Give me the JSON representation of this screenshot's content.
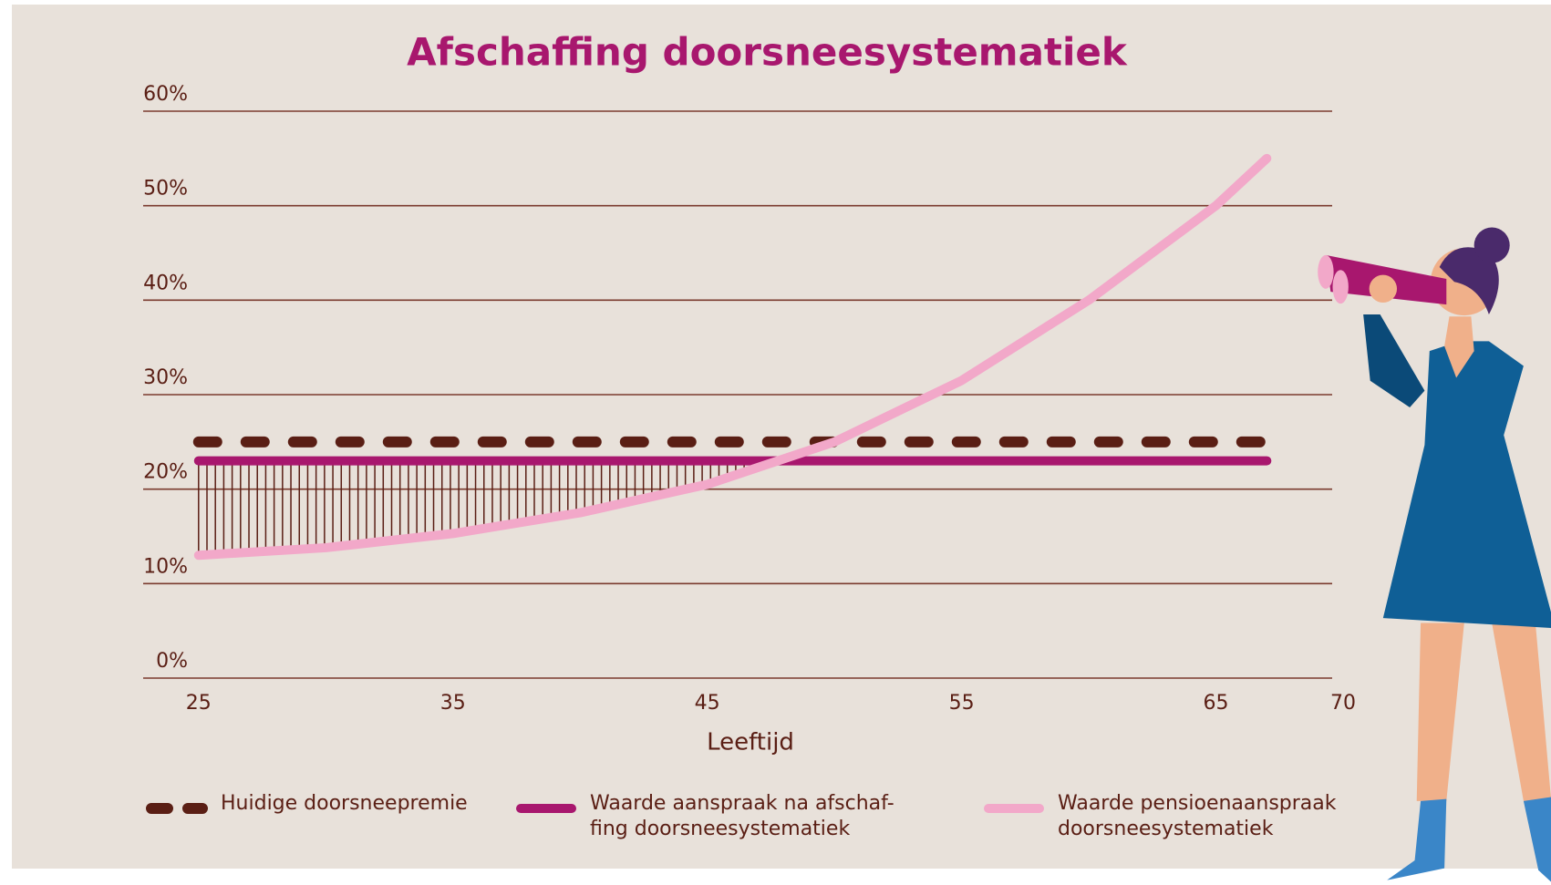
{
  "chart_data": {
    "type": "line",
    "title": "Afschaffing doorsneesystematiek",
    "xlabel": "Leeftijd",
    "xlim": [
      23,
      70
    ],
    "xticks": [
      25,
      35,
      45,
      55,
      65,
      70
    ],
    "ylim": [
      0,
      60
    ],
    "yticks": [
      {
        "value": 0,
        "label": "0%"
      },
      {
        "value": 10,
        "label": "10%"
      },
      {
        "value": 20,
        "label": "20%"
      },
      {
        "value": 30,
        "label": "30%"
      },
      {
        "value": 40,
        "label": "40%"
      },
      {
        "value": 50,
        "label": "50%"
      },
      {
        "value": 60,
        "label": "60%"
      }
    ],
    "grid": true,
    "x": [
      25,
      30,
      35,
      40,
      45,
      50,
      55,
      60,
      65,
      67
    ],
    "series": [
      {
        "name": "Huidige doorsneepremie",
        "color": "#5a1e14",
        "style": "dashed",
        "values": [
          25,
          25,
          25,
          25,
          25,
          25,
          25,
          25,
          25,
          25
        ]
      },
      {
        "name": "Waarde aanspraak na afschaf-\nfing doorsneesystematiek",
        "color": "#a8176e",
        "style": "solid",
        "values": [
          23,
          23,
          23,
          23,
          23,
          23,
          23,
          23,
          23,
          23
        ]
      },
      {
        "name": "Waarde pensioenaanspraak\ndoorsneesystematiek",
        "color": "#f2a8c9",
        "style": "solid",
        "values": [
          13,
          13.8,
          15.3,
          17.5,
          20.5,
          25,
          31.5,
          40,
          50,
          55
        ]
      }
    ]
  }
}
